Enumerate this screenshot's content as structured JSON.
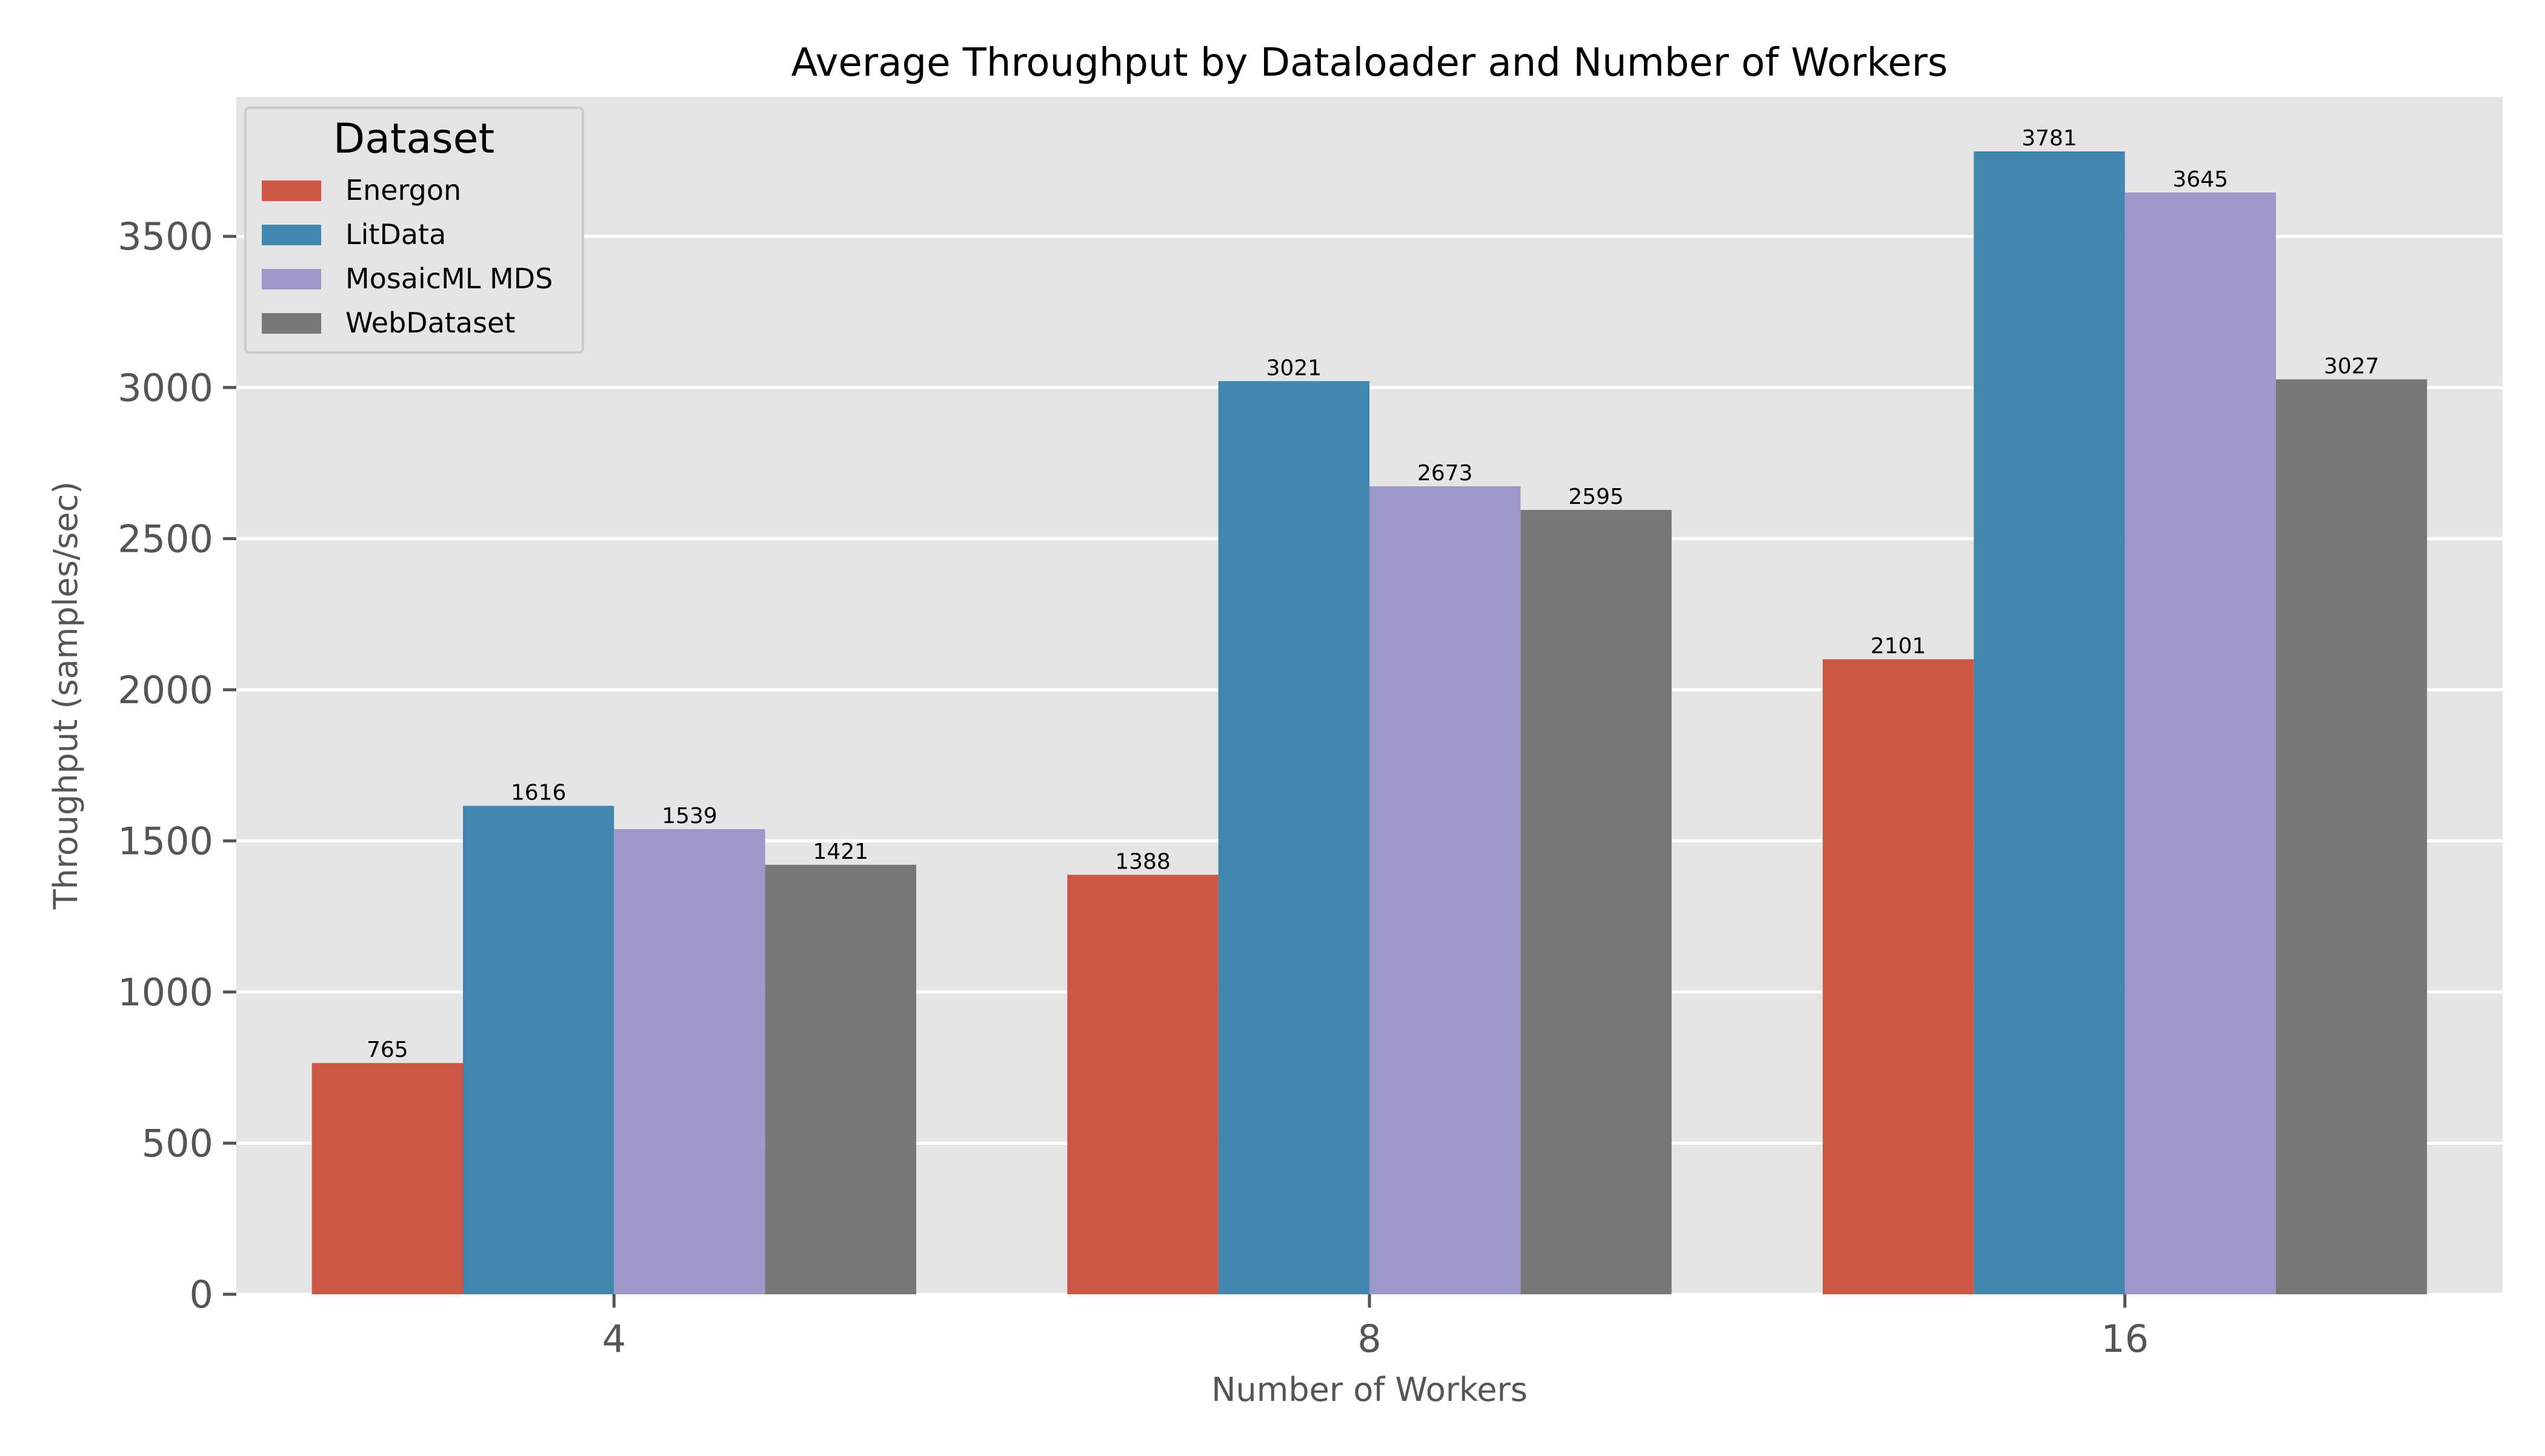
{
  "chart_data": {
    "type": "bar",
    "title": "Average Throughput by Dataloader and Number of Workers",
    "xlabel": "Number of Workers",
    "ylabel": "Throughput (samples/sec)",
    "categories": [
      "4",
      "8",
      "16"
    ],
    "ylim": [
      0,
      3781
    ],
    "yticks": [
      0,
      500,
      1000,
      1500,
      2000,
      2500,
      3000,
      3500
    ],
    "grid": true,
    "legend": {
      "title": "Dataset",
      "placement": "top-left"
    },
    "series": [
      {
        "name": "Energon",
        "color": "#cc5745",
        "values": [
          765,
          1388,
          2101
        ]
      },
      {
        "name": "LitData",
        "color": "#4386ad",
        "values": [
          1616,
          3021,
          3781
        ]
      },
      {
        "name": "MosaicML MDS",
        "color": "#9e98ca",
        "values": [
          1539,
          2673,
          3645
        ]
      },
      {
        "name": "WebDataset",
        "color": "#777777",
        "values": [
          1421,
          2595,
          3027
        ]
      }
    ]
  }
}
